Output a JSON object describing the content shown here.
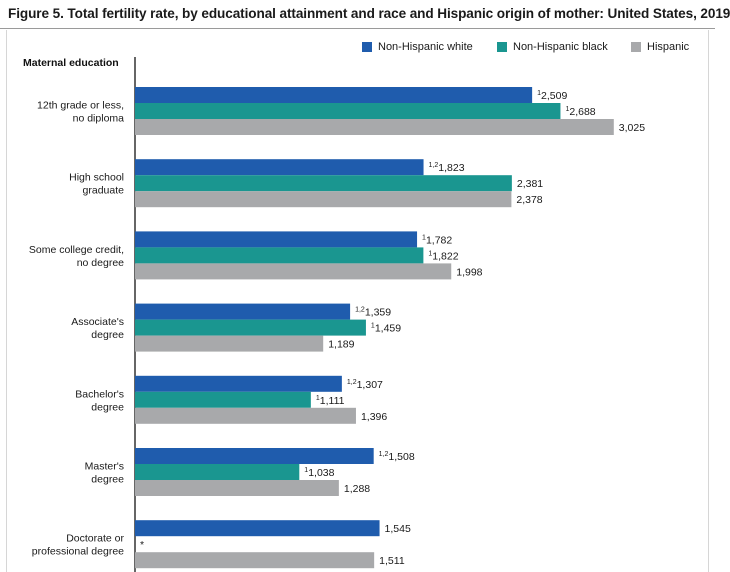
{
  "title": "Figure 5. Total fertility rate, by educational attainment and race and Hispanic origin of mother: United States, 2019",
  "colors": {
    "white": "#1f5cad",
    "black": "#1a9690",
    "hispanic": "#a8a9ab",
    "axis": "#000000"
  },
  "chart_data": {
    "type": "bar",
    "orientation": "horizontal",
    "category_axis_title": "Maternal education",
    "categories": [
      [
        "12th grade or less,",
        "no diploma"
      ],
      [
        "High school",
        "graduate"
      ],
      [
        "Some college credit,",
        "no degree"
      ],
      [
        "Associate's",
        "degree"
      ],
      [
        "Bachelor's",
        "degree"
      ],
      [
        "Master's",
        "degree"
      ],
      [
        "Doctorate or",
        "professional degree"
      ]
    ],
    "series": [
      {
        "name": "Non-Hispanic white",
        "color": "#1f5cad",
        "values": [
          2509,
          1823,
          1782,
          1359,
          1307,
          1508,
          1545
        ],
        "labels": [
          "2,509",
          "1,823",
          "1,782",
          "1,359",
          "1,307",
          "1,508",
          "1,545"
        ],
        "footnotes": [
          "1",
          "1,2",
          "1",
          "1,2",
          "1,2",
          "1,2",
          ""
        ]
      },
      {
        "name": "Non-Hispanic black",
        "color": "#1a9690",
        "values": [
          2688,
          2381,
          1822,
          1459,
          1111,
          1038,
          null
        ],
        "labels": [
          "2,688",
          "2,381",
          "1,822",
          "1,459",
          "1,111",
          "1,038",
          "*"
        ],
        "footnotes": [
          "1",
          "",
          "1",
          "1",
          "1",
          "1",
          ""
        ]
      },
      {
        "name": "Hispanic",
        "color": "#a8a9ab",
        "values": [
          3025,
          2378,
          1998,
          1189,
          1396,
          1288,
          1511
        ],
        "labels": [
          "3,025",
          "2,378",
          "1,998",
          "1,189",
          "1,396",
          "1,288",
          "1,511"
        ],
        "footnotes": [
          "",
          "",
          "",
          "",
          "",
          "",
          ""
        ]
      }
    ],
    "value_axis_range": [
      0,
      3300
    ],
    "grid": false,
    "legend": "top-right"
  }
}
